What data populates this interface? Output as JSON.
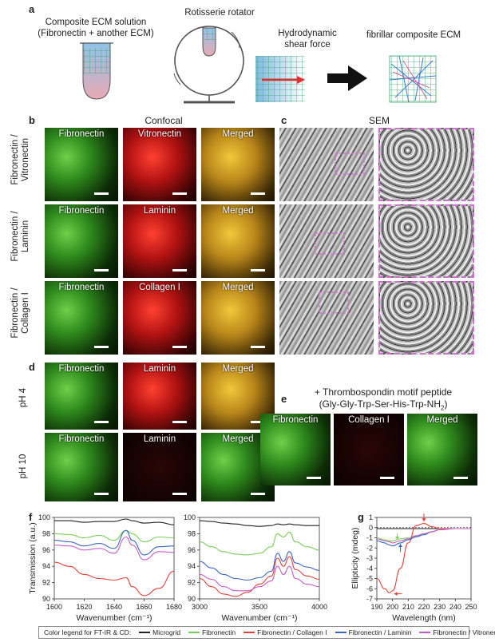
{
  "panels": {
    "a": {
      "label": "a",
      "solution_title": "Composite ECM solution",
      "solution_sub": "(Fibronectin + another ECM)",
      "rotator": "Rotisserie rotator",
      "shear_1": "Hydrodynamic",
      "shear_2": "shear force",
      "fibrillar": "fibrillar composite ECM"
    },
    "b": {
      "label": "b",
      "title": "Confocal",
      "rows": [
        {
          "row_line1": "Fibronectin /",
          "row_line2": "Vitronectin",
          "c1": "Fibronectin",
          "c2": "Vitronectin",
          "c3": "Merged"
        },
        {
          "row_line1": "Fibronectin /",
          "row_line2": "Laminin",
          "c1": "Fibronectin",
          "c2": "Laminin",
          "c3": "Merged"
        },
        {
          "row_line1": "Fibronectin /",
          "row_line2": "Collagen I",
          "c1": "Fibronectin",
          "c2": "Collagen I",
          "c3": "Merged"
        }
      ]
    },
    "c": {
      "label": "c",
      "title": "SEM"
    },
    "d": {
      "label": "d",
      "rows": [
        {
          "row": "pH 4",
          "c1": "Fibronectin",
          "c2": "Laminin",
          "c3": "Merged"
        },
        {
          "row": "pH 10",
          "c1": "Fibronectin",
          "c2": "Laminin",
          "c3": "Merged"
        }
      ]
    },
    "e": {
      "label": "e",
      "title": "+ Thrombospondin motif peptide",
      "subtitle": "(Gly-Gly-Trp-Ser-His-Trp-NH",
      "subtitle_sub": "2",
      "subtitle_end": ")",
      "c1": "Fibronectin",
      "c2": "Collagen I",
      "c3": "Merged"
    },
    "f": {
      "label": "f"
    },
    "g": {
      "label": "g"
    }
  },
  "colors": {
    "microgrid": "#222222",
    "fibronectin": "#7ccf5a",
    "fn_col": "#e8413a",
    "fn_lam": "#3d66c4",
    "fn_vit": "#c75fc9"
  },
  "legend": {
    "title": "Color legend for FT-IR & CD:",
    "items": [
      "Microgrid",
      "Fibronectin",
      "Fibronectin / Collagen I",
      "Fibronectin / Laminin",
      "Fibronectin / Vitronectin"
    ]
  },
  "chart_data": [
    {
      "type": "line",
      "panel": "f-left",
      "ylabel": "Transmission (a.u.)",
      "xlabel": "Wavenumber (cm⁻¹)",
      "xlim": [
        1600,
        1680
      ],
      "ylim": [
        90,
        100
      ],
      "xticks": [
        "1600",
        "1620",
        "1640",
        "1660",
        "1680"
      ],
      "yticks": [
        "90",
        "92",
        "94",
        "96",
        "98",
        "100"
      ],
      "x": [
        1600,
        1610,
        1620,
        1630,
        1640,
        1648,
        1652,
        1660,
        1670,
        1680
      ],
      "series": [
        {
          "name": "Microgrid",
          "values": [
            99.6,
            99.6,
            99.4,
            99.5,
            99.5,
            99.8,
            99.6,
            99.3,
            99.4,
            99.1
          ]
        },
        {
          "name": "Fibronectin",
          "values": [
            98.0,
            97.9,
            97.5,
            97.8,
            97.2,
            98.4,
            98.0,
            97.0,
            97.6,
            97.5
          ]
        },
        {
          "name": "Fibronectin / Collagen I",
          "values": [
            94.5,
            94.0,
            93.0,
            92.5,
            92.3,
            92.6,
            91.5,
            90.4,
            91.3,
            93.4
          ]
        },
        {
          "name": "Fibronectin / Laminin",
          "values": [
            97.2,
            97.0,
            96.5,
            96.8,
            96.2,
            98.4,
            97.2,
            95.4,
            96.4,
            96.5
          ]
        },
        {
          "name": "Fibronectin / Vitronectin",
          "values": [
            96.6,
            96.5,
            96.0,
            96.2,
            95.6,
            97.6,
            96.6,
            94.8,
            95.8,
            95.7
          ]
        }
      ]
    },
    {
      "type": "line",
      "panel": "f-right",
      "xlabel": "Wavenumber (cm⁻¹)",
      "xlim": [
        3000,
        4000
      ],
      "ylim": [
        90,
        100
      ],
      "xticks": [
        "3000",
        "3500",
        "4000"
      ],
      "yticks": [
        "90",
        "92",
        "94",
        "96",
        "98",
        "100"
      ],
      "x": [
        3000,
        3100,
        3200,
        3300,
        3400,
        3500,
        3600,
        3650,
        3700,
        3750,
        3800,
        3900,
        4000
      ],
      "series": [
        {
          "name": "Microgrid",
          "values": [
            99.6,
            99.5,
            99.3,
            99.2,
            99.0,
            98.9,
            99.0,
            99.2,
            99.1,
            99.2,
            99.1,
            99.0,
            99.0
          ]
        },
        {
          "name": "Fibronectin",
          "values": [
            97.0,
            96.4,
            95.8,
            95.5,
            95.4,
            95.6,
            96.4,
            98.0,
            97.6,
            98.2,
            97.0,
            96.4,
            96.0
          ]
        },
        {
          "name": "Fibronectin / Collagen I",
          "values": [
            92.5,
            91.5,
            90.6,
            90.3,
            90.8,
            91.8,
            92.8,
            95.0,
            94.0,
            95.2,
            93.6,
            92.8,
            92.4
          ]
        },
        {
          "name": "Fibronectin / Laminin",
          "values": [
            94.6,
            93.8,
            93.0,
            92.5,
            92.3,
            92.6,
            93.4,
            95.6,
            94.6,
            95.8,
            94.4,
            93.9,
            93.5
          ]
        },
        {
          "name": "Fibronectin / Vitronectin",
          "values": [
            93.0,
            92.4,
            91.5,
            91.0,
            91.0,
            91.5,
            92.2,
            94.0,
            93.0,
            94.0,
            92.5,
            91.8,
            91.5
          ]
        }
      ]
    },
    {
      "type": "line",
      "panel": "g",
      "ylabel": "Ellipticity (mdeg)",
      "xlabel": "Wavelength (nm)",
      "xlim": [
        190,
        250
      ],
      "ylim": [
        -7,
        1
      ],
      "xticks": [
        "190",
        "200",
        "210",
        "220",
        "230",
        "240",
        "250"
      ],
      "yticks": [
        "1",
        "0",
        "-1",
        "-2",
        "-3",
        "-4",
        "-5",
        "-6",
        "-7"
      ],
      "x": [
        190,
        195,
        198,
        200,
        205,
        210,
        215,
        220,
        225,
        230,
        240,
        250
      ],
      "series": [
        {
          "name": "Microgrid",
          "values": [
            -0.1,
            -0.1,
            -0.1,
            -0.1,
            -0.1,
            -0.1,
            -0.1,
            -0.1,
            -0.1,
            -0.1,
            -0.1,
            -0.1
          ]
        },
        {
          "name": "Fibronectin",
          "values": [
            -1.0,
            -1.2,
            -1.3,
            -1.3,
            -1.1,
            -1.0,
            -0.8,
            -0.6,
            -0.4,
            -0.2,
            -0.1,
            -0.1
          ]
        },
        {
          "name": "Fibronectin / Collagen I",
          "values": [
            -5.0,
            -6.0,
            -6.4,
            -6.2,
            -4.0,
            -1.5,
            0.2,
            0.4,
            0.1,
            -0.1,
            -0.1,
            -0.1
          ]
        },
        {
          "name": "Fibronectin / Laminin",
          "values": [
            -1.3,
            -1.5,
            -1.7,
            -1.8,
            -1.5,
            -1.2,
            -0.9,
            -0.7,
            -0.4,
            -0.2,
            -0.1,
            -0.1
          ]
        },
        {
          "name": "Fibronectin / Vitronectin",
          "values": [
            -1.1,
            -1.3,
            -1.4,
            -1.5,
            -1.3,
            -1.1,
            -0.8,
            -0.6,
            -0.4,
            -0.2,
            -0.1,
            -0.1
          ]
        }
      ]
    }
  ]
}
